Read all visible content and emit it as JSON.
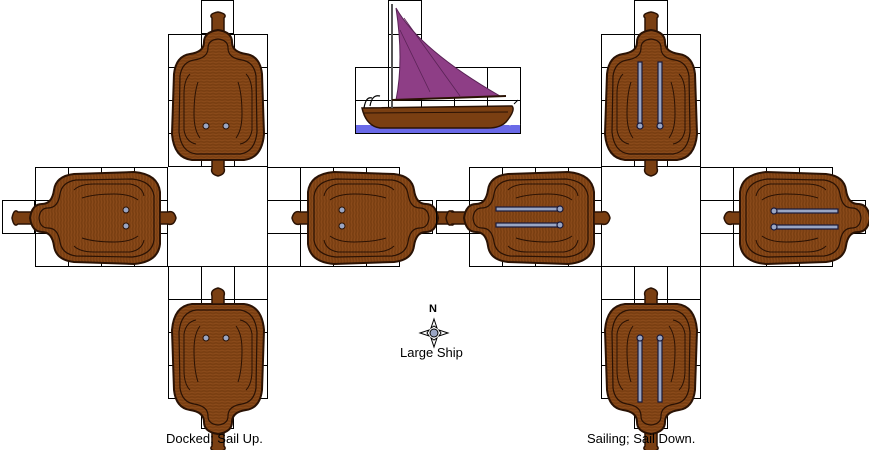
{
  "title": "Large Ship",
  "compass": {
    "north": "N",
    "icon": "compass-rose-icon"
  },
  "groups": [
    {
      "caption": "Docked; Sail Up.",
      "state": "docked",
      "sail": "up",
      "headings": [
        "north",
        "west",
        "east",
        "south"
      ]
    },
    {
      "caption": "Sailing; Sail Down.",
      "state": "sailing",
      "sail": "down",
      "headings": [
        "north",
        "west",
        "east",
        "south"
      ]
    }
  ],
  "side_view": {
    "description_icon": "sailboat-icon",
    "sail_state": "raised"
  },
  "colors": {
    "hull": "#7a3f12",
    "hull_dark": "#3a1a04",
    "deck_grain": "#9a5a26",
    "sail": "#8e3e86",
    "sail_dark": "#5a2356",
    "water": "#6a6ae8",
    "grid": "#000000",
    "fitting": "#9aa6c4"
  }
}
